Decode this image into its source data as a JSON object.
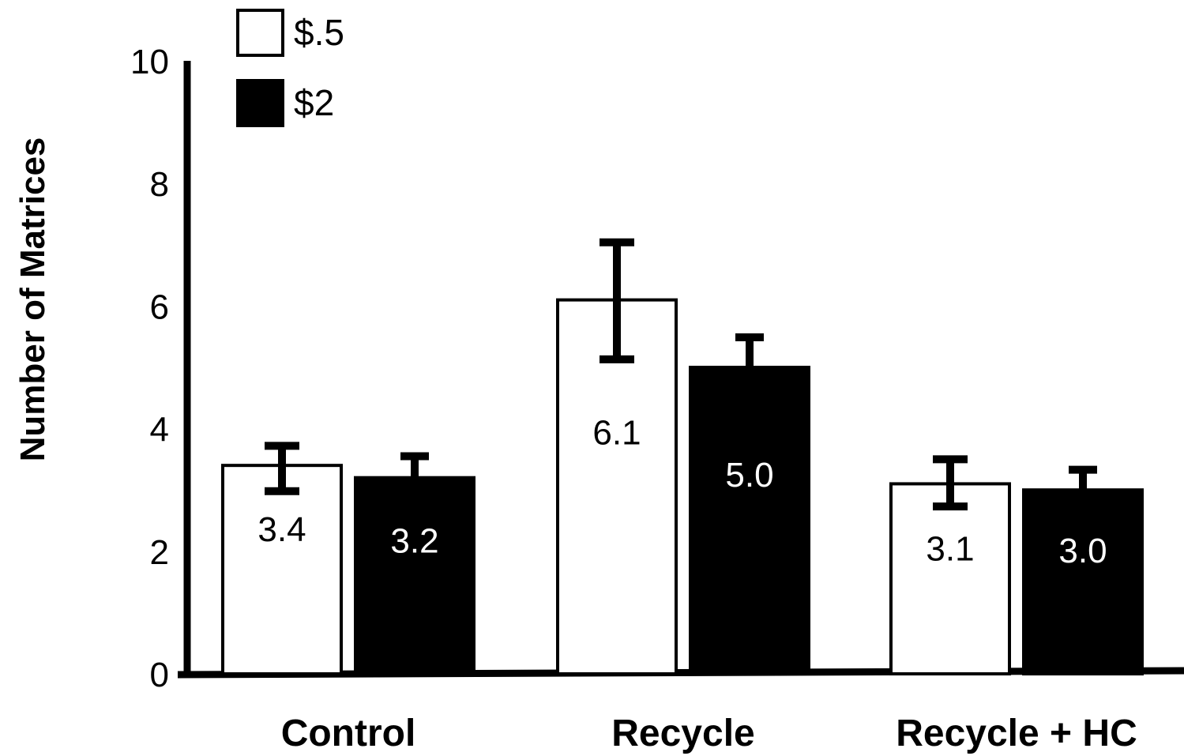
{
  "chart_data": {
    "type": "bar",
    "title": "",
    "xlabel": "",
    "ylabel": "Number of Matrices",
    "ylim": [
      0,
      10
    ],
    "yticks": [
      0,
      2,
      4,
      6,
      8,
      10
    ],
    "categories": [
      "Control",
      "Recycle",
      "Recycle + HC"
    ],
    "series": [
      {
        "name": "$.5",
        "fill": "#ffffff",
        "label_color": "#000000",
        "values": [
          3.4,
          6.1,
          3.1
        ],
        "error_low": [
          2.98,
          5.13,
          2.73
        ],
        "error_high": [
          3.72,
          7.04,
          3.5
        ]
      },
      {
        "name": "$2",
        "fill": "#000000",
        "label_color": "#ffffff",
        "values": [
          3.2,
          5.0,
          3.0
        ],
        "error_low": [
          3.2,
          5.0,
          3.0
        ],
        "error_high": [
          3.55,
          5.49,
          3.33
        ]
      }
    ],
    "data_labels": [
      [
        "3.4",
        "3.2"
      ],
      [
        "6.1",
        "5.0"
      ],
      [
        "3.1",
        "3.0"
      ]
    ],
    "legend": {
      "position": "top-left",
      "entries": [
        "$.5",
        "$2"
      ]
    },
    "grid": false
  }
}
